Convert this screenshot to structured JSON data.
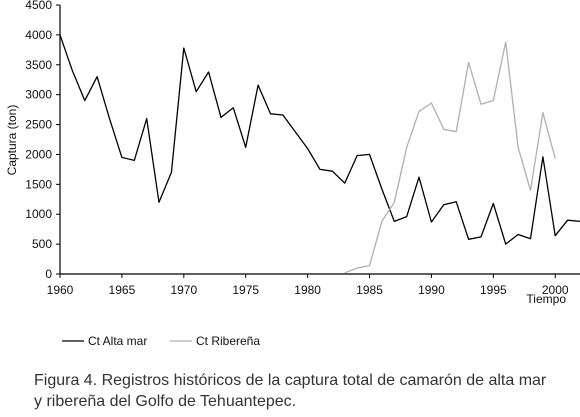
{
  "chart_data": {
    "type": "line",
    "ylabel": "Captura (ton)",
    "xlabel": "Tiempo",
    "xlim": [
      1960,
      2002
    ],
    "ylim": [
      0,
      4500
    ],
    "xticks": [
      "1960",
      "1965",
      "1970",
      "1975",
      "1980",
      "1985",
      "1990",
      "1995",
      "2000"
    ],
    "yticks": [
      "0",
      "500",
      "1000",
      "1500",
      "2000",
      "2500",
      "3000",
      "3500",
      "4000",
      "4500"
    ],
    "series": [
      {
        "name": "Ct Alta mar",
        "color": "#000000",
        "x": [
          1960,
          1961,
          1962,
          1963,
          1964,
          1965,
          1966,
          1967,
          1968,
          1969,
          1970,
          1971,
          1972,
          1973,
          1974,
          1975,
          1976,
          1977,
          1978,
          1979,
          1980,
          1981,
          1982,
          1983,
          1984,
          1985,
          1986,
          1987,
          1988,
          1989,
          1990,
          1991,
          1992,
          1993,
          1994,
          1995,
          1996,
          1997,
          1998,
          1999,
          2000,
          2001,
          2002
        ],
        "y": [
          4000,
          3400,
          2900,
          3300,
          2600,
          1950,
          1900,
          2600,
          1200,
          1700,
          3780,
          3050,
          3380,
          2620,
          2780,
          2120,
          3160,
          2680,
          2660,
          2380,
          2100,
          1750,
          1720,
          1520,
          1980,
          2000,
          1420,
          880,
          960,
          1620,
          870,
          1160,
          1210,
          580,
          620,
          1180,
          500,
          660,
          590,
          1960,
          640,
          900,
          880
        ]
      },
      {
        "name": "Ct Ribereña",
        "color": "#b0b0b0",
        "x": [
          1983,
          1984,
          1985,
          1986,
          1987,
          1988,
          1989,
          1990,
          1991,
          1992,
          1993,
          1994,
          1995,
          1996,
          1997,
          1998,
          1999,
          2000
        ],
        "y": [
          20,
          100,
          140,
          880,
          1200,
          2120,
          2720,
          2860,
          2420,
          2380,
          3540,
          2840,
          2900,
          3880,
          2120,
          1400,
          2700,
          1930
        ]
      }
    ],
    "legend_position": "bottom-left"
  },
  "caption": {
    "line1": "Figura 4. Registros históricos de la captura total de camarón de alta mar",
    "line2": "y ribereña del Golfo de Tehuantepec."
  }
}
